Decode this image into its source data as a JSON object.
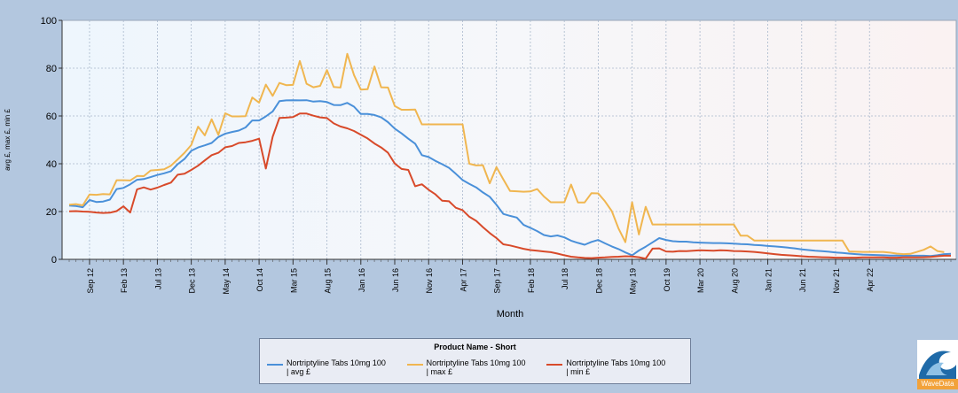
{
  "chart_data": {
    "type": "line",
    "xlabel": "Month",
    "ylabel": "avg £, max £, min £",
    "ylim": [
      0,
      100
    ],
    "yticks": [
      0,
      20,
      40,
      60,
      80,
      100
    ],
    "x_start": "Jun 12",
    "x_end": "Apr 22",
    "tick_labels": [
      "Sep 12",
      "Feb 13",
      "Jul 13",
      "Dec 13",
      "May 14",
      "Oct 14",
      "Mar 15",
      "Aug 15",
      "Jan 16",
      "Jun 16",
      "Nov 16",
      "Apr 17",
      "Sep 17",
      "Feb 18",
      "Jul 18",
      "Dec 18",
      "May 19",
      "Oct 19",
      "Mar 20",
      "Aug 20",
      "Jan 21",
      "Jun 21",
      "Nov 21",
      "Apr 22"
    ],
    "series": [
      {
        "name": "Nortriptyline Tabs 10mg 100 | avg £",
        "color": "#4a90d9",
        "values": [
          22.5,
          22.3,
          21.8,
          24.8,
          24.0,
          24.2,
          25.0,
          29.4,
          29.9,
          31.4,
          33.3,
          33.6,
          34.4,
          35.3,
          36.0,
          36.9,
          39.8,
          42.0,
          45.4,
          46.8,
          47.7,
          48.7,
          51.2,
          52.6,
          53.3,
          53.9,
          55.2,
          58.1,
          58.1,
          59.8,
          61.9,
          66.2,
          66.5,
          66.6,
          66.5,
          66.6,
          66.0,
          66.2,
          65.8,
          64.6,
          64.5,
          65.5,
          63.9,
          60.8,
          60.8,
          60.4,
          59.4,
          57.4,
          54.7,
          52.7,
          50.5,
          48.4,
          43.6,
          42.8,
          41.2,
          39.8,
          38.3,
          35.8,
          33.2,
          31.6,
          30.1,
          28.0,
          26.2,
          22.8,
          19.0,
          18.2,
          17.5,
          14.4,
          13.2,
          11.8,
          10.2,
          9.6,
          10.0,
          9.2,
          7.8,
          6.9,
          6.1,
          7.3,
          8.1,
          6.7,
          5.4,
          4.3,
          2.9,
          1.7,
          3.7,
          5.3,
          7.1,
          8.9,
          8.1,
          7.6,
          7.4,
          7.4,
          7.1,
          7.0,
          6.9,
          6.8,
          6.8,
          6.7,
          6.6,
          6.4,
          6.3,
          6.0,
          5.9,
          5.6,
          5.4,
          5.2,
          4.9,
          4.6,
          4.2,
          3.9,
          3.6,
          3.4,
          3.2,
          2.9,
          2.7,
          2.4,
          2.2,
          2.0,
          1.9,
          1.8,
          1.7,
          1.6,
          1.6,
          1.5,
          1.5,
          1.5,
          1.5,
          1.4,
          1.7,
          2.2,
          2.3
        ]
      },
      {
        "name": "Nortriptyline Tabs 10mg 100 | max £",
        "color": "#f0b650",
        "values": [
          22.9,
          23.1,
          22.6,
          27.1,
          27.0,
          27.3,
          27.2,
          33.1,
          33.1,
          33.0,
          34.9,
          34.8,
          37.2,
          37.4,
          37.7,
          39.2,
          41.8,
          44.6,
          47.8,
          55.5,
          51.9,
          58.6,
          52.1,
          61.1,
          59.8,
          59.8,
          59.9,
          67.7,
          65.6,
          73.1,
          68.4,
          73.8,
          72.9,
          73.0,
          83.0,
          73.5,
          72.0,
          72.6,
          79.2,
          72.1,
          71.9,
          86.0,
          77.1,
          71.0,
          71.2,
          80.7,
          72.0,
          71.9,
          64.2,
          62.6,
          62.6,
          62.7,
          56.5,
          56.5,
          56.5,
          56.5,
          56.5,
          56.5,
          56.5,
          40.0,
          39.3,
          39.4,
          31.8,
          38.6,
          33.5,
          28.6,
          28.5,
          28.3,
          28.4,
          29.4,
          26.3,
          23.9,
          23.9,
          23.9,
          31.3,
          23.8,
          23.8,
          27.7,
          27.6,
          24.3,
          20.2,
          12.9,
          7.2,
          23.9,
          10.4,
          22.0,
          14.6,
          14.6,
          14.6,
          14.6,
          14.6,
          14.6,
          14.6,
          14.6,
          14.6,
          14.6,
          14.6,
          14.6,
          14.6,
          9.9,
          9.9,
          7.9,
          7.9,
          7.9,
          7.9,
          7.9,
          7.9,
          7.9,
          7.9,
          7.9,
          7.9,
          7.9,
          7.9,
          7.9,
          7.9,
          3.3,
          3.2,
          3.1,
          3.1,
          3.1,
          3.1,
          2.8,
          2.4,
          2.2,
          2.3,
          3.1,
          4.0,
          5.4,
          3.5,
          3.0
        ]
      },
      {
        "name": "Nortriptyline Tabs 10mg 100 | min £",
        "color": "#d84a2a",
        "values": [
          20.1,
          20.2,
          20.0,
          19.9,
          19.6,
          19.4,
          19.5,
          20.2,
          22.2,
          19.6,
          29.3,
          30.1,
          29.2,
          30.0,
          31.1,
          32.1,
          35.4,
          35.8,
          37.4,
          39.2,
          41.4,
          43.6,
          44.6,
          46.9,
          47.4,
          48.7,
          49.0,
          49.6,
          50.5,
          38.0,
          51.3,
          59.2,
          59.3,
          59.5,
          61.0,
          61.0,
          60.1,
          59.4,
          59.1,
          56.9,
          55.6,
          54.8,
          53.7,
          52.1,
          50.6,
          48.5,
          46.8,
          44.6,
          40.1,
          37.8,
          37.4,
          30.6,
          31.4,
          29.1,
          27.2,
          24.5,
          24.3,
          21.6,
          20.6,
          17.8,
          16.1,
          13.5,
          11.0,
          8.9,
          6.3,
          5.8,
          5.1,
          4.4,
          3.9,
          3.6,
          3.3,
          3.0,
          2.4,
          1.7,
          1.1,
          0.8,
          0.6,
          0.5,
          0.7,
          0.8,
          1.0,
          1.1,
          1.3,
          1.2,
          0.9,
          0.3,
          4.5,
          4.6,
          3.3,
          3.2,
          3.5,
          3.4,
          3.6,
          3.8,
          3.7,
          3.6,
          3.8,
          3.7,
          3.5,
          3.4,
          3.3,
          3.1,
          2.8,
          2.5,
          2.2,
          1.9,
          1.7,
          1.5,
          1.3,
          1.1,
          1.0,
          0.9,
          0.8,
          0.7,
          0.7,
          0.7,
          0.7,
          0.8,
          0.8,
          0.8,
          0.8,
          0.7,
          0.7,
          0.8,
          0.8,
          0.8,
          0.9,
          1.0,
          1.3,
          1.5,
          1.5
        ]
      }
    ]
  },
  "legend": {
    "title": "Product Name - Short",
    "items": [
      {
        "line1": "Nortriptyline Tabs 10mg 100",
        "line2": "| avg £",
        "color": "#4a90d9"
      },
      {
        "line1": "Nortriptyline Tabs 10mg 100",
        "line2": "| max £",
        "color": "#f0b650"
      },
      {
        "line1": "Nortriptyline Tabs 10mg 100",
        "line2": "| min £",
        "color": "#d84a2a"
      }
    ]
  },
  "logo": {
    "text": "WaveData"
  }
}
